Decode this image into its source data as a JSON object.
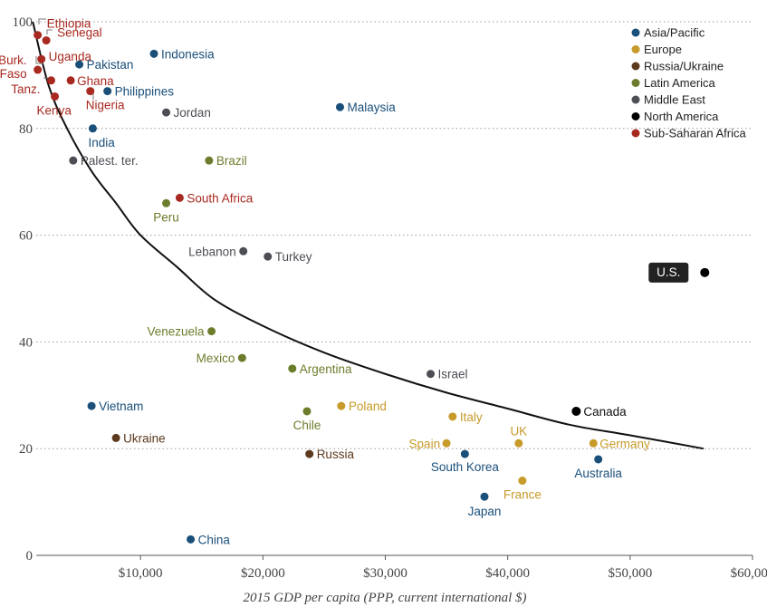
{
  "chart_data": {
    "type": "scatter",
    "xlabel": "2015 GDP per capita (PPP, current international $)",
    "ylabel": "",
    "xlim": [
      0,
      60000
    ],
    "ylim": [
      0,
      100
    ],
    "x_ticks": [
      {
        "value": 10000,
        "label": "$10,000"
      },
      {
        "value": 20000,
        "label": "$20,000"
      },
      {
        "value": 30000,
        "label": "$30,000"
      },
      {
        "value": 40000,
        "label": "$40,000"
      },
      {
        "value": 50000,
        "label": "$50,000"
      },
      {
        "value": 60000,
        "label": "$60,000"
      }
    ],
    "y_ticks": [
      {
        "value": 0,
        "label": "0"
      },
      {
        "value": 20,
        "label": "20"
      },
      {
        "value": 40,
        "label": "40"
      },
      {
        "value": 60,
        "label": "60"
      },
      {
        "value": 80,
        "label": "80"
      },
      {
        "value": 100,
        "label": "100"
      }
    ],
    "grid": "horizontal dotted",
    "legend_position": "top-right",
    "legend": [
      {
        "name": "Asia/Pacific",
        "color": "#1a4f7a"
      },
      {
        "name": "Europe",
        "color": "#c79a2a"
      },
      {
        "name": "Russia/Ukraine",
        "color": "#5c3a1e"
      },
      {
        "name": "Latin America",
        "color": "#6b7d2c"
      },
      {
        "name": "Middle East",
        "color": "#4d4d55"
      },
      {
        "name": "North America",
        "color": "#000000"
      },
      {
        "name": "Sub-Saharan Africa",
        "color": "#a8291f"
      }
    ],
    "trend_curve": [
      [
        1200,
        100
      ],
      [
        2500,
        88
      ],
      [
        4000,
        80
      ],
      [
        6000,
        72
      ],
      [
        8000,
        66
      ],
      [
        10000,
        60
      ],
      [
        13000,
        54
      ],
      [
        16000,
        48
      ],
      [
        20000,
        43
      ],
      [
        25000,
        38
      ],
      [
        30000,
        34
      ],
      [
        35000,
        30.5
      ],
      [
        40000,
        27.5
      ],
      [
        45000,
        24.5
      ],
      [
        50000,
        22.5
      ],
      [
        56000,
        20
      ]
    ],
    "points": [
      {
        "label": "Ethiopia",
        "region": "Sub-Saharan Africa",
        "x": 1600,
        "y": 97.5
      },
      {
        "label": "Senegal",
        "region": "Sub-Saharan Africa",
        "x": 2300,
        "y": 96.5
      },
      {
        "label": "Uganda",
        "region": "Sub-Saharan Africa",
        "x": 1900,
        "y": 93
      },
      {
        "label": "Burk. Faso",
        "region": "Sub-Saharan Africa",
        "x": 1600,
        "y": 91
      },
      {
        "label": "Tanz.",
        "region": "Sub-Saharan Africa",
        "x": 2700,
        "y": 89
      },
      {
        "label": "Ghana",
        "region": "Sub-Saharan Africa",
        "x": 4300,
        "y": 89
      },
      {
        "label": "Nigeria",
        "region": "Sub-Saharan Africa",
        "x": 5900,
        "y": 87
      },
      {
        "label": "Kenya",
        "region": "Sub-Saharan Africa",
        "x": 3000,
        "y": 86
      },
      {
        "label": "South Africa",
        "region": "Sub-Saharan Africa",
        "x": 13200,
        "y": 67
      },
      {
        "label": "Indonesia",
        "region": "Asia/Pacific",
        "x": 11100,
        "y": 94
      },
      {
        "label": "Pakistan",
        "region": "Asia/Pacific",
        "x": 5000,
        "y": 92
      },
      {
        "label": "Philippines",
        "region": "Asia/Pacific",
        "x": 7300,
        "y": 87
      },
      {
        "label": "Malaysia",
        "region": "Asia/Pacific",
        "x": 26300,
        "y": 84
      },
      {
        "label": "India",
        "region": "Asia/Pacific",
        "x": 6100,
        "y": 80
      },
      {
        "label": "Vietnam",
        "region": "Asia/Pacific",
        "x": 6000,
        "y": 28
      },
      {
        "label": "China",
        "region": "Asia/Pacific",
        "x": 14100,
        "y": 3
      },
      {
        "label": "South Korea",
        "region": "Asia/Pacific",
        "x": 36500,
        "y": 19
      },
      {
        "label": "Japan",
        "region": "Asia/Pacific",
        "x": 38100,
        "y": 11
      },
      {
        "label": "Australia",
        "region": "Asia/Pacific",
        "x": 47400,
        "y": 18
      },
      {
        "label": "Jordan",
        "region": "Middle East",
        "x": 12100,
        "y": 83
      },
      {
        "label": "Palest. ter.",
        "region": "Middle East",
        "x": 4500,
        "y": 74
      },
      {
        "label": "Lebanon",
        "region": "Middle East",
        "x": 18400,
        "y": 57
      },
      {
        "label": "Turkey",
        "region": "Middle East",
        "x": 20400,
        "y": 56
      },
      {
        "label": "Israel",
        "region": "Middle East",
        "x": 33700,
        "y": 34
      },
      {
        "label": "Brazil",
        "region": "Latin America",
        "x": 15600,
        "y": 74
      },
      {
        "label": "Peru",
        "region": "Latin America",
        "x": 12100,
        "y": 66
      },
      {
        "label": "Venezuela",
        "region": "Latin America",
        "x": 15800,
        "y": 42
      },
      {
        "label": "Mexico",
        "region": "Latin America",
        "x": 18300,
        "y": 37
      },
      {
        "label": "Argentina",
        "region": "Latin America",
        "x": 22400,
        "y": 35
      },
      {
        "label": "Chile",
        "region": "Latin America",
        "x": 23600,
        "y": 27
      },
      {
        "label": "Ukraine",
        "region": "Russia/Ukraine",
        "x": 8000,
        "y": 22
      },
      {
        "label": "Russia",
        "region": "Russia/Ukraine",
        "x": 23800,
        "y": 19
      },
      {
        "label": "Poland",
        "region": "Europe",
        "x": 26400,
        "y": 28
      },
      {
        "label": "Italy",
        "region": "Europe",
        "x": 35500,
        "y": 26
      },
      {
        "label": "Spain",
        "region": "Europe",
        "x": 35000,
        "y": 21
      },
      {
        "label": "UK",
        "region": "Europe",
        "x": 40900,
        "y": 21
      },
      {
        "label": "Germany",
        "region": "Europe",
        "x": 47000,
        "y": 21
      },
      {
        "label": "France",
        "region": "Europe",
        "x": 41200,
        "y": 14
      },
      {
        "label": "Canada",
        "region": "North America",
        "x": 45600,
        "y": 27
      },
      {
        "label": "U.S.",
        "region": "North America",
        "x": 56100,
        "y": 53
      }
    ]
  }
}
